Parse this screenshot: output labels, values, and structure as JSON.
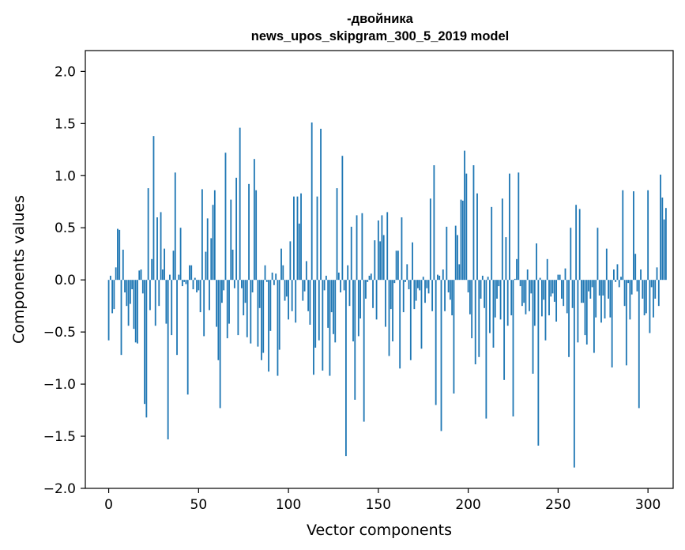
{
  "chart_data": {
    "type": "bar",
    "title_lines": [
      "-двойника",
      "news_upos_skipgram_300_5_2019 model"
    ],
    "xlabel": "Vector components",
    "ylabel": "Components values",
    "xlim": [
      -13,
      314
    ],
    "ylim": [
      -2.0,
      2.2
    ],
    "xticks": [
      0,
      50,
      100,
      150,
      200,
      250,
      300
    ],
    "yticks": [
      -2.0,
      -1.5,
      -1.0,
      -0.5,
      0.0,
      0.5,
      1.0,
      1.5,
      2.0
    ],
    "ytick_labels": [
      "−2.0",
      "−1.5",
      "−1.0",
      "−0.5",
      "0.0",
      "0.5",
      "1.0",
      "1.5",
      "2.0"
    ],
    "color": "#1f77b4",
    "grid": false,
    "x_start": 0,
    "values": [
      -0.58,
      0.04,
      -0.32,
      -0.28,
      0.12,
      0.49,
      0.48,
      -0.72,
      0.29,
      -0.12,
      -0.25,
      -0.44,
      -0.23,
      -0.09,
      -0.47,
      -0.6,
      -0.61,
      0.09,
      0.1,
      -0.13,
      -1.19,
      -1.32,
      0.88,
      -0.29,
      0.2,
      1.38,
      -0.44,
      0.6,
      -0.25,
      0.65,
      0.1,
      0.3,
      -0.42,
      -1.53,
      0.05,
      -0.53,
      0.28,
      1.03,
      -0.72,
      0.05,
      0.5,
      -0.06,
      -0.02,
      -0.04,
      -1.1,
      0.14,
      0.14,
      -0.09,
      0.02,
      -0.12,
      -0.1,
      -0.31,
      0.87,
      -0.54,
      0.27,
      0.59,
      -0.29,
      0.4,
      0.72,
      0.86,
      -0.45,
      -0.77,
      -1.23,
      -0.22,
      -0.1,
      1.22,
      -0.56,
      -0.42,
      0.77,
      0.29,
      -0.08,
      0.98,
      -0.53,
      1.46,
      -0.08,
      -0.34,
      -0.22,
      -0.55,
      0.92,
      -0.61,
      -0.12,
      1.16,
      0.86,
      -0.64,
      -0.27,
      -0.77,
      -0.7,
      0.14,
      -0.02,
      -0.88,
      -0.49,
      0.07,
      -0.05,
      0.06,
      -0.92,
      -0.67,
      0.3,
      0.14,
      -0.2,
      -0.16,
      -0.38,
      0.37,
      -0.3,
      0.8,
      -0.41,
      0.8,
      0.54,
      0.83,
      -0.2,
      -0.11,
      0.18,
      -0.3,
      -0.43,
      1.51,
      -0.91,
      -0.65,
      0.8,
      -0.58,
      1.45,
      -0.87,
      -0.1,
      0.04,
      -0.46,
      -0.92,
      -0.31,
      -0.52,
      -0.6,
      0.88,
      0.07,
      -0.12,
      1.19,
      -0.1,
      -1.69,
      0.14,
      -0.25,
      0.51,
      -0.59,
      -1.15,
      0.62,
      -0.54,
      -0.37,
      0.64,
      -1.36,
      -0.18,
      -0.02,
      0.04,
      0.06,
      -0.27,
      0.38,
      -0.38,
      0.57,
      0.37,
      0.62,
      0.43,
      -0.45,
      0.65,
      -0.73,
      -0.28,
      -0.59,
      -0.03,
      0.28,
      0.28,
      -0.85,
      0.6,
      -0.31,
      -0.02,
      0.15,
      -0.09,
      -0.77,
      0.36,
      -0.28,
      -0.2,
      -0.08,
      -0.1,
      -0.66,
      0.03,
      -0.22,
      -0.08,
      -0.13,
      0.78,
      -0.3,
      1.1,
      -1.2,
      0.05,
      0.04,
      -1.45,
      0.1,
      -0.3,
      0.51,
      -0.12,
      -0.19,
      -0.34,
      -1.09,
      0.52,
      0.43,
      0.15,
      0.77,
      0.76,
      1.24,
      1.02,
      -0.12,
      -0.33,
      -0.56,
      1.1,
      -0.81,
      0.83,
      -0.74,
      -0.18,
      0.04,
      -0.27,
      -1.33,
      0.03,
      -0.51,
      0.7,
      -0.65,
      -0.36,
      -0.18,
      -0.06,
      -0.38,
      0.78,
      -0.96,
      0.41,
      -0.44,
      1.02,
      -0.34,
      -1.31,
      0.01,
      0.2,
      1.03,
      -0.06,
      -0.25,
      -0.22,
      -0.33,
      0.1,
      -0.3,
      -0.13,
      -0.9,
      -0.44,
      0.35,
      -1.59,
      0.02,
      -0.35,
      -0.19,
      -0.58,
      0.2,
      -0.34,
      -0.16,
      -0.13,
      -0.21,
      -0.4,
      0.05,
      0.05,
      -0.18,
      -0.25,
      0.11,
      -0.32,
      -0.74,
      0.5,
      -0.27,
      -1.8,
      0.72,
      -0.6,
      0.68,
      -0.22,
      -0.22,
      -0.53,
      -0.62,
      -0.11,
      -0.18,
      -0.07,
      -0.7,
      -0.36,
      0.5,
      -0.15,
      -0.41,
      -0.15,
      -0.37,
      0.3,
      -0.18,
      -0.36,
      -0.84,
      0.1,
      -0.02,
      0.15,
      -0.07,
      0.03,
      0.86,
      -0.25,
      -0.82,
      -0.03,
      -0.38,
      -0.14,
      0.85,
      0.25,
      -0.11,
      -1.23,
      0.1,
      -0.18,
      -0.34,
      -0.32,
      0.86,
      -0.51,
      -0.07,
      -0.36,
      -0.18,
      0.12,
      -0.25,
      1.01,
      0.79,
      0.58,
      0.69
    ]
  }
}
